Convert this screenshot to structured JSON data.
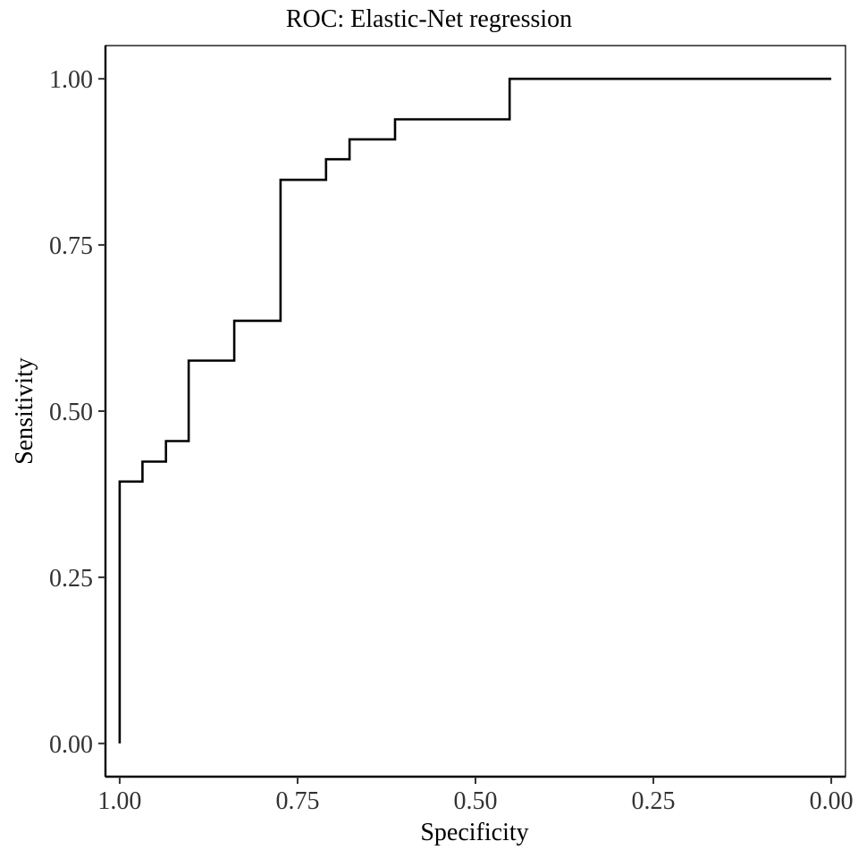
{
  "chart_data": {
    "type": "line",
    "title": "ROC: Elastic-Net regression",
    "xlabel": "Specificity",
    "ylabel": "Sensitivity",
    "x_reversed": true,
    "xlim": [
      1.02,
      -0.02
    ],
    "ylim": [
      -0.05,
      1.05
    ],
    "xticks": [
      1.0,
      0.75,
      0.5,
      0.25,
      0.0
    ],
    "xtick_labels": [
      "1.00",
      "0.75",
      "0.50",
      "0.25",
      "0.00"
    ],
    "yticks": [
      0.0,
      0.25,
      0.5,
      0.75,
      1.0
    ],
    "ytick_labels": [
      "0.00",
      "0.25",
      "0.50",
      "0.75",
      "1.00"
    ],
    "grid": false,
    "line_color": "#000000",
    "series": [
      {
        "step": true,
        "points": [
          {
            "specificity": 1.0,
            "sensitivity": 0.0
          },
          {
            "specificity": 1.0,
            "sensitivity": 0.394
          },
          {
            "specificity": 0.968,
            "sensitivity": 0.394
          },
          {
            "specificity": 0.968,
            "sensitivity": 0.424
          },
          {
            "specificity": 0.935,
            "sensitivity": 0.424
          },
          {
            "specificity": 0.935,
            "sensitivity": 0.455
          },
          {
            "specificity": 0.903,
            "sensitivity": 0.455
          },
          {
            "specificity": 0.903,
            "sensitivity": 0.576
          },
          {
            "specificity": 0.839,
            "sensitivity": 0.576
          },
          {
            "specificity": 0.839,
            "sensitivity": 0.636
          },
          {
            "specificity": 0.774,
            "sensitivity": 0.636
          },
          {
            "specificity": 0.774,
            "sensitivity": 0.848
          },
          {
            "specificity": 0.71,
            "sensitivity": 0.848
          },
          {
            "specificity": 0.71,
            "sensitivity": 0.879
          },
          {
            "specificity": 0.677,
            "sensitivity": 0.879
          },
          {
            "specificity": 0.677,
            "sensitivity": 0.909
          },
          {
            "specificity": 0.613,
            "sensitivity": 0.909
          },
          {
            "specificity": 0.613,
            "sensitivity": 0.939
          },
          {
            "specificity": 0.452,
            "sensitivity": 0.939
          },
          {
            "specificity": 0.452,
            "sensitivity": 1.0
          },
          {
            "specificity": 0.0,
            "sensitivity": 1.0
          }
        ]
      }
    ]
  }
}
